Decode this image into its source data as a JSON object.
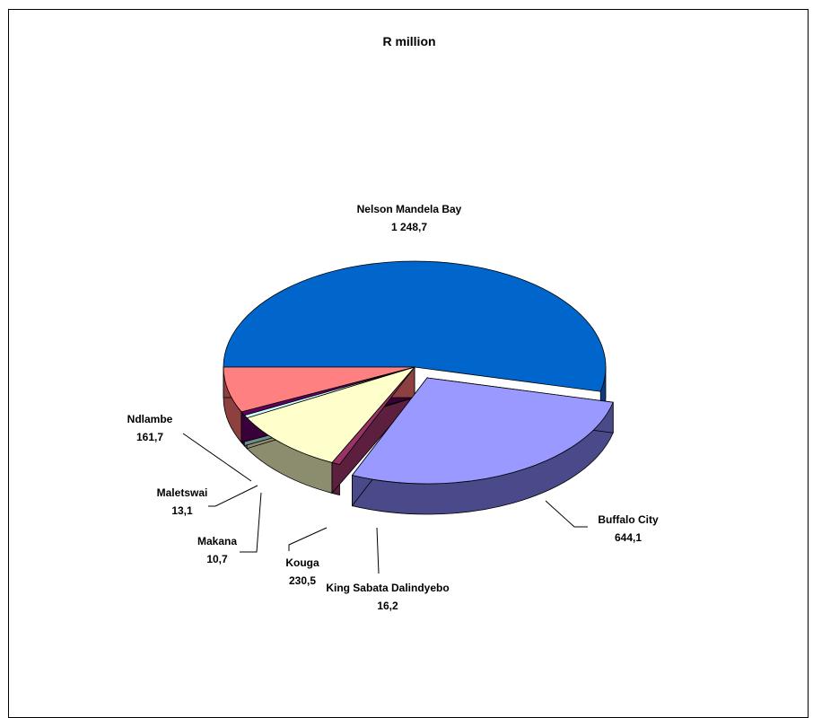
{
  "chart_data": {
    "type": "pie",
    "title": "R million",
    "slices": [
      {
        "name": "Nelson Mandela Bay",
        "value_label": "1 248,7",
        "value": 1248.7,
        "color": "#0066cc",
        "side_color": "#0a3d80"
      },
      {
        "name": "Buffalo City",
        "value_label": "644,1",
        "value": 644.1,
        "color": "#9999ff",
        "side_color": "#4a4a8a"
      },
      {
        "name": "King Sabata Dalindyebo",
        "value_label": "16,2",
        "value": 16.2,
        "color": "#993366",
        "side_color": "#5c1f3d"
      },
      {
        "name": "Kouga",
        "value_label": "230,5",
        "value": 230.5,
        "color": "#ffffcc",
        "side_color": "#8c8c6e"
      },
      {
        "name": "Makana",
        "value_label": "10,7",
        "value": 10.7,
        "color": "#ccffff",
        "side_color": "#6e8c8c"
      },
      {
        "name": "Maletswai",
        "value_label": "13,1",
        "value": 13.1,
        "color": "#660066",
        "side_color": "#3a003a"
      },
      {
        "name": "Ndlambe",
        "value_label": "161,7",
        "value": 161.7,
        "color": "#ff8080",
        "side_color": "#8c4040"
      }
    ]
  }
}
